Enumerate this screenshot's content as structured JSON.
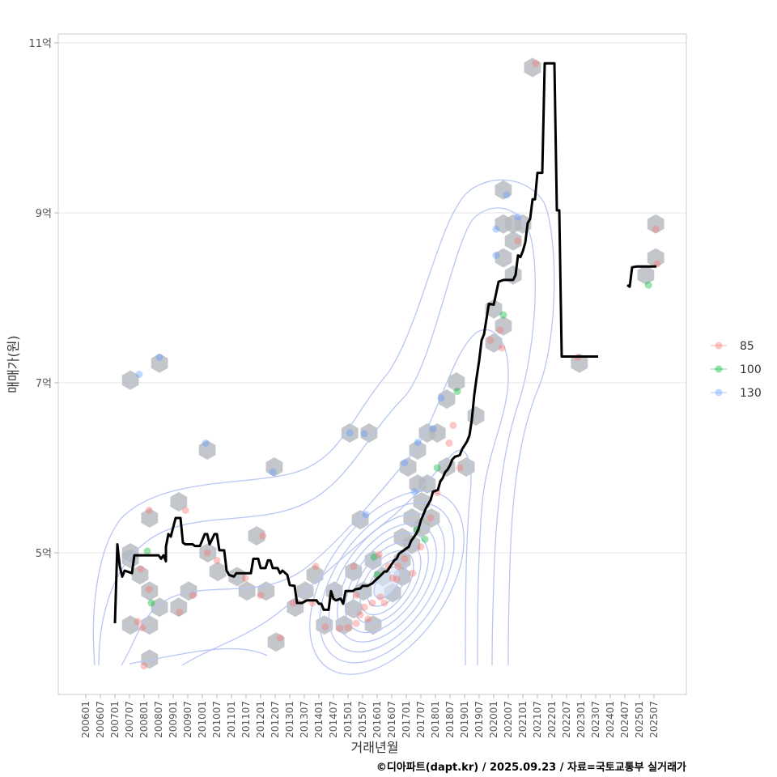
{
  "chart_data": {
    "type": "line",
    "title": "",
    "xlabel": "거래년월",
    "ylabel": "매매가(원)",
    "caption": "©디아파트(dapt.kr) / 2025.09.23 / 자료=국토교통부 실거래가",
    "ylim": [
      3.35,
      11.2
    ],
    "xlim": [
      2005.0,
      2026.6
    ],
    "grid": "horizontal major",
    "y_ticks": [
      {
        "value": 5,
        "label": "5억"
      },
      {
        "value": 7,
        "label": "7억"
      },
      {
        "value": 9,
        "label": "9억"
      },
      {
        "value": 11,
        "label": "11억"
      }
    ],
    "x_ticks": [
      "200601",
      "200607",
      "200701",
      "200707",
      "200801",
      "200807",
      "200901",
      "200907",
      "201001",
      "201007",
      "201101",
      "201107",
      "201201",
      "201207",
      "201301",
      "201307",
      "201401",
      "201407",
      "201501",
      "201507",
      "201601",
      "201607",
      "201701",
      "201707",
      "201801",
      "201807",
      "201901",
      "201907",
      "202001",
      "202007",
      "202101",
      "202107",
      "202201",
      "202207",
      "202301",
      "202307",
      "202401",
      "202407",
      "202501",
      "202507"
    ],
    "legend": {
      "position": "right",
      "title": "",
      "entries": [
        {
          "label": "85",
          "color": "#F8766D"
        },
        {
          "label": "100",
          "color": "#00BA38"
        },
        {
          "label": "130",
          "color": "#619CFF"
        }
      ]
    },
    "line_color": "#000000",
    "hex_color": "#B4B9BE",
    "contour_color": "#B8C6F2",
    "median_line": [
      [
        [
          "2007-01",
          4.17
        ],
        [
          "2007-02",
          5.1
        ],
        [
          "2007-03",
          4.84
        ],
        [
          "2007-04",
          4.72
        ],
        [
          "2007-05",
          4.79
        ],
        [
          "2007-08",
          4.76
        ],
        [
          "2007-09",
          4.97
        ],
        [
          "2008-07",
          4.97
        ],
        [
          "2008-08",
          4.93
        ],
        [
          "2008-09",
          4.97
        ],
        [
          "2008-10",
          4.9
        ],
        [
          "2008-10",
          5.07
        ],
        [
          "2008-11",
          5.22
        ],
        [
          "2008-12",
          5.19
        ],
        [
          "2009-02",
          5.41
        ],
        [
          "2009-04",
          5.41
        ],
        [
          "2009-05",
          5.12
        ],
        [
          "2009-06",
          5.1
        ],
        [
          "2009-09",
          5.1
        ],
        [
          "2009-10",
          5.08
        ],
        [
          "2009-12",
          5.08
        ],
        [
          "2010-02",
          5.22
        ],
        [
          "2010-03",
          5.22
        ],
        [
          "2010-04",
          5.1
        ],
        [
          "2010-06",
          5.22
        ],
        [
          "2010-07",
          5.22
        ],
        [
          "2010-08",
          5.03
        ],
        [
          "2010-10",
          5.03
        ],
        [
          "2010-11",
          4.79
        ],
        [
          "2010-12",
          4.74
        ],
        [
          "2011-02",
          4.72
        ],
        [
          "2011-03",
          4.76
        ],
        [
          "2011-09",
          4.76
        ],
        [
          "2011-10",
          4.93
        ],
        [
          "2011-12",
          4.93
        ],
        [
          "2012-01",
          4.82
        ],
        [
          "2012-03",
          4.82
        ],
        [
          "2012-04",
          4.91
        ],
        [
          "2012-05",
          4.91
        ],
        [
          "2012-06",
          4.82
        ],
        [
          "2012-08",
          4.82
        ],
        [
          "2012-09",
          4.76
        ],
        [
          "2012-10",
          4.79
        ],
        [
          "2012-12",
          4.74
        ],
        [
          "2013-01",
          4.62
        ],
        [
          "2013-03",
          4.61
        ],
        [
          "2013-04",
          4.41
        ],
        [
          "2013-06",
          4.41
        ],
        [
          "2013-08",
          4.44
        ],
        [
          "2013-12",
          4.44
        ],
        [
          "2014-01",
          4.4
        ],
        [
          "2014-02",
          4.4
        ],
        [
          "2014-03",
          4.33
        ],
        [
          "2014-05",
          4.33
        ],
        [
          "2014-06",
          4.55
        ],
        [
          "2014-07",
          4.46
        ],
        [
          "2014-08",
          4.44
        ],
        [
          "2014-10",
          4.46
        ],
        [
          "2014-11",
          4.4
        ],
        [
          "2014-12",
          4.55
        ],
        [
          "2015-03",
          4.55
        ],
        [
          "2015-04",
          4.57
        ],
        [
          "2015-06",
          4.58
        ],
        [
          "2015-07",
          4.61
        ],
        [
          "2015-09",
          4.61
        ],
        [
          "2015-11",
          4.64
        ],
        [
          "2015-12",
          4.67
        ],
        [
          "2016-02",
          4.72
        ],
        [
          "2016-04",
          4.78
        ],
        [
          "2016-05",
          4.78
        ],
        [
          "2016-08",
          4.91
        ],
        [
          "2016-09",
          4.93
        ],
        [
          "2016-10",
          4.99
        ],
        [
          "2016-12",
          5.03
        ],
        [
          "2017-02",
          5.07
        ],
        [
          "2017-03",
          5.14
        ],
        [
          "2017-05",
          5.22
        ],
        [
          "2017-06",
          5.28
        ],
        [
          "2017-07",
          5.38
        ],
        [
          "2017-08",
          5.45
        ],
        [
          "2017-09",
          5.52
        ],
        [
          "2017-11",
          5.62
        ],
        [
          "2017-12",
          5.72
        ],
        [
          "2018-02",
          5.74
        ],
        [
          "2018-03",
          5.84
        ],
        [
          "2018-04",
          5.88
        ],
        [
          "2018-05",
          5.95
        ],
        [
          "2018-06",
          5.98
        ],
        [
          "2018-07",
          6.03
        ],
        [
          "2018-08",
          6.1
        ],
        [
          "2018-09",
          6.13
        ],
        [
          "2018-11",
          6.15
        ],
        [
          "2018-12",
          6.22
        ],
        [
          "2019-02",
          6.31
        ],
        [
          "2019-03",
          6.38
        ],
        [
          "2019-04",
          6.57
        ],
        [
          "2019-05",
          6.86
        ],
        [
          "2019-06",
          7.07
        ],
        [
          "2019-07",
          7.26
        ],
        [
          "2019-08",
          7.5
        ],
        [
          "2019-09",
          7.57
        ],
        [
          "2019-11",
          7.93
        ],
        [
          "2020-01",
          7.92
        ],
        [
          "2020-03",
          8.19
        ],
        [
          "2020-05",
          8.21
        ],
        [
          "2020-09",
          8.21
        ],
        [
          "2020-10",
          8.27
        ],
        [
          "2020-11",
          8.5
        ],
        [
          "2020-12",
          8.48
        ],
        [
          "2021-01",
          8.55
        ],
        [
          "2021-02",
          8.65
        ],
        [
          "2021-03",
          8.88
        ],
        [
          "2021-04",
          8.93
        ],
        [
          "2021-05",
          9.16
        ],
        [
          "2021-06",
          9.16
        ],
        [
          "2021-07",
          9.47
        ],
        [
          "2021-09",
          9.47
        ],
        [
          "2021-10",
          10.76
        ],
        [
          "2022-02",
          10.76
        ],
        [
          "2022-03",
          9.03
        ],
        [
          "2022-04",
          9.03
        ],
        [
          "2022-05",
          7.31
        ],
        [
          "2023-08",
          7.31
        ]
      ],
      [
        [
          "2024-08",
          8.15
        ],
        [
          "2024-09",
          8.13
        ],
        [
          "2024-10",
          8.36
        ],
        [
          "2024-12",
          8.37
        ],
        [
          "2025-08",
          8.37
        ]
      ]
    ],
    "hexbins": [
      [
        2007.53,
        7.03
      ],
      [
        2008.53,
        7.23
      ],
      [
        2010.17,
        6.21
      ],
      [
        2012.47,
        6.01
      ],
      [
        2015.06,
        6.41
      ],
      [
        2015.72,
        6.41
      ],
      [
        2015.42,
        5.39
      ],
      [
        2017.06,
        6.01
      ],
      [
        2017.72,
        6.41
      ],
      [
        2017.39,
        6.21
      ],
      [
        2018.06,
        6.41
      ],
      [
        2018.39,
        6.81
      ],
      [
        2018.72,
        7.01
      ],
      [
        2019.39,
        6.61
      ],
      [
        2019.06,
        6.01
      ],
      [
        2018.39,
        6.01
      ],
      [
        2017.72,
        5.81
      ],
      [
        2017.39,
        5.81
      ],
      [
        2020.33,
        9.27
      ],
      [
        2020.33,
        8.87
      ],
      [
        2020.67,
        8.87
      ],
      [
        2021.0,
        8.87
      ],
      [
        2020.33,
        8.47
      ],
      [
        2020.67,
        8.67
      ],
      [
        2020.67,
        8.27
      ],
      [
        2020.0,
        7.87
      ],
      [
        2020.33,
        7.67
      ],
      [
        2020.0,
        7.47
      ],
      [
        2021.33,
        10.71
      ],
      [
        2022.94,
        7.23
      ],
      [
        2025.56,
        8.87
      ],
      [
        2025.56,
        8.47
      ],
      [
        2025.22,
        8.27
      ],
      [
        2007.53,
        5.0
      ],
      [
        2008.19,
        5.41
      ],
      [
        2007.53,
        4.93
      ],
      [
        2007.86,
        4.74
      ],
      [
        2008.19,
        4.55
      ],
      [
        2008.53,
        4.36
      ],
      [
        2008.19,
        4.15
      ],
      [
        2007.53,
        4.15
      ],
      [
        2008.19,
        3.75
      ],
      [
        2009.19,
        5.6
      ],
      [
        2009.53,
        4.55
      ],
      [
        2009.19,
        4.36
      ],
      [
        2010.19,
        5.0
      ],
      [
        2010.53,
        4.78
      ],
      [
        2011.86,
        5.2
      ],
      [
        2011.19,
        4.72
      ],
      [
        2011.53,
        4.55
      ],
      [
        2012.19,
        4.55
      ],
      [
        2012.53,
        3.95
      ],
      [
        2013.19,
        4.36
      ],
      [
        2013.86,
        4.74
      ],
      [
        2013.53,
        4.55
      ],
      [
        2014.19,
        4.15
      ],
      [
        2014.86,
        4.15
      ],
      [
        2015.19,
        4.78
      ],
      [
        2014.53,
        4.55
      ],
      [
        2015.53,
        4.55
      ],
      [
        2015.86,
        4.15
      ],
      [
        2015.19,
        4.34
      ],
      [
        2015.86,
        4.91
      ],
      [
        2016.19,
        4.72
      ],
      [
        2016.53,
        4.53
      ],
      [
        2016.86,
        4.91
      ],
      [
        2017.19,
        5.1
      ],
      [
        2017.53,
        5.3
      ],
      [
        2017.86,
        5.41
      ],
      [
        2016.86,
        5.18
      ],
      [
        2017.19,
        5.41
      ],
      [
        2017.53,
        5.6
      ],
      [
        2016.86,
        4.72
      ]
    ],
    "points": [
      {
        "group": "130",
        "x": 2007.83,
        "y": 7.1
      },
      {
        "group": "130",
        "x": 2008.53,
        "y": 7.3
      },
      {
        "group": "130",
        "x": 2010.11,
        "y": 6.29
      },
      {
        "group": "130",
        "x": 2012.42,
        "y": 5.95
      },
      {
        "group": "130",
        "x": 2015.06,
        "y": 6.41
      },
      {
        "group": "130",
        "x": 2015.56,
        "y": 6.4
      },
      {
        "group": "130",
        "x": 2015.61,
        "y": 5.45
      },
      {
        "group": "130",
        "x": 2016.94,
        "y": 6.06
      },
      {
        "group": "130",
        "x": 2017.39,
        "y": 6.3
      },
      {
        "group": "130",
        "x": 2017.92,
        "y": 6.46
      },
      {
        "group": "130",
        "x": 2018.19,
        "y": 6.82
      },
      {
        "group": "130",
        "x": 2017.28,
        "y": 5.72
      },
      {
        "group": "130",
        "x": 2020.08,
        "y": 8.81
      },
      {
        "group": "130",
        "x": 2020.08,
        "y": 8.5
      },
      {
        "group": "130",
        "x": 2020.44,
        "y": 9.21
      },
      {
        "group": "130",
        "x": 2020.83,
        "y": 8.95
      },
      {
        "group": "100",
        "x": 2008.11,
        "y": 5.02
      },
      {
        "group": "100",
        "x": 2008.25,
        "y": 4.41
      },
      {
        "group": "100",
        "x": 2018.75,
        "y": 6.9
      },
      {
        "group": "100",
        "x": 2018.06,
        "y": 6.0
      },
      {
        "group": "100",
        "x": 2017.64,
        "y": 5.16
      },
      {
        "group": "100",
        "x": 2015.89,
        "y": 4.95
      },
      {
        "group": "100",
        "x": 2016.0,
        "y": 4.74
      },
      {
        "group": "100",
        "x": 2020.33,
        "y": 7.8
      },
      {
        "group": "100",
        "x": 2025.31,
        "y": 8.15
      },
      {
        "group": "100",
        "x": 2017.36,
        "y": 5.27
      },
      {
        "group": "85",
        "x": 2008.17,
        "y": 5.5
      },
      {
        "group": "85",
        "x": 2007.89,
        "y": 4.81
      },
      {
        "group": "85",
        "x": 2008.17,
        "y": 4.57
      },
      {
        "group": "85",
        "x": 2007.78,
        "y": 4.19
      },
      {
        "group": "85",
        "x": 2007.94,
        "y": 4.12
      },
      {
        "group": "85",
        "x": 2008.0,
        "y": 3.67
      },
      {
        "group": "85",
        "x": 2009.42,
        "y": 5.5
      },
      {
        "group": "85",
        "x": 2009.67,
        "y": 4.5
      },
      {
        "group": "85",
        "x": 2009.22,
        "y": 4.3
      },
      {
        "group": "85",
        "x": 2010.17,
        "y": 5.0
      },
      {
        "group": "85",
        "x": 2010.5,
        "y": 4.91
      },
      {
        "group": "85",
        "x": 2012.08,
        "y": 5.2
      },
      {
        "group": "85",
        "x": 2011.47,
        "y": 4.7
      },
      {
        "group": "85",
        "x": 2012.0,
        "y": 4.5
      },
      {
        "group": "85",
        "x": 2012.67,
        "y": 4.0
      },
      {
        "group": "85",
        "x": 2013.89,
        "y": 4.84
      },
      {
        "group": "85",
        "x": 2013.11,
        "y": 4.41
      },
      {
        "group": "85",
        "x": 2013.78,
        "y": 4.41
      },
      {
        "group": "85",
        "x": 2014.22,
        "y": 4.13
      },
      {
        "group": "85",
        "x": 2014.72,
        "y": 4.11
      },
      {
        "group": "85",
        "x": 2015.19,
        "y": 4.84
      },
      {
        "group": "85",
        "x": 2015.28,
        "y": 4.17
      },
      {
        "group": "85",
        "x": 2015.42,
        "y": 4.27
      },
      {
        "group": "85",
        "x": 2015.56,
        "y": 4.36
      },
      {
        "group": "85",
        "x": 2015.83,
        "y": 4.41
      },
      {
        "group": "85",
        "x": 2016.06,
        "y": 4.98
      },
      {
        "group": "85",
        "x": 2016.39,
        "y": 4.84
      },
      {
        "group": "85",
        "x": 2016.67,
        "y": 4.69
      },
      {
        "group": "85",
        "x": 2016.94,
        "y": 4.93
      },
      {
        "group": "85",
        "x": 2017.22,
        "y": 4.76
      },
      {
        "group": "85",
        "x": 2017.5,
        "y": 5.07
      },
      {
        "group": "85",
        "x": 2017.83,
        "y": 5.41
      },
      {
        "group": "85",
        "x": 2018.06,
        "y": 5.71
      },
      {
        "group": "85",
        "x": 2018.47,
        "y": 6.29
      },
      {
        "group": "85",
        "x": 2018.61,
        "y": 6.5
      },
      {
        "group": "85",
        "x": 2018.83,
        "y": 6.0
      },
      {
        "group": "85",
        "x": 2019.89,
        "y": 7.5
      },
      {
        "group": "85",
        "x": 2020.22,
        "y": 7.62
      },
      {
        "group": "85",
        "x": 2020.28,
        "y": 7.41
      },
      {
        "group": "85",
        "x": 2020.83,
        "y": 8.67
      },
      {
        "group": "85",
        "x": 2021.44,
        "y": 10.76
      },
      {
        "group": "85",
        "x": 2022.89,
        "y": 7.3
      },
      {
        "group": "85",
        "x": 2025.56,
        "y": 8.81
      },
      {
        "group": "85",
        "x": 2025.61,
        "y": 8.4
      },
      {
        "group": "85",
        "x": 2016.11,
        "y": 4.48
      },
      {
        "group": "85",
        "x": 2015.0,
        "y": 4.12
      },
      {
        "group": "85",
        "x": 2015.69,
        "y": 4.22
      },
      {
        "group": "85",
        "x": 2016.25,
        "y": 4.41
      },
      {
        "group": "85",
        "x": 2015.28,
        "y": 4.5
      },
      {
        "group": "85",
        "x": 2016.53,
        "y": 4.7
      },
      {
        "group": "85",
        "x": 2016.72,
        "y": 4.84
      }
    ]
  }
}
